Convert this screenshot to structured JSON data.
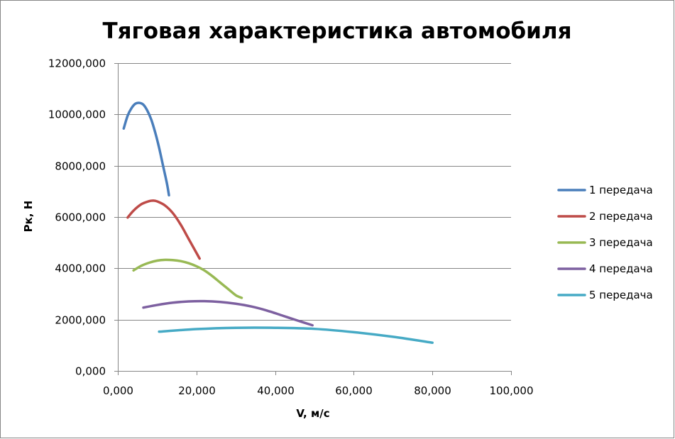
{
  "chart_data": {
    "type": "line",
    "title": "Тяговая характеристика автомобиля",
    "xlabel": "V, м/с",
    "ylabel": "Рк, Н",
    "xlim": [
      0,
      100
    ],
    "ylim": [
      0,
      12000
    ],
    "x_ticks": [
      0,
      20,
      40,
      60,
      80,
      100
    ],
    "x_tick_labels": [
      "0,000",
      "20,000",
      "40,000",
      "60,000",
      "80,000",
      "100,000"
    ],
    "y_ticks": [
      0,
      2000,
      4000,
      6000,
      8000,
      10000,
      12000
    ],
    "y_tick_labels": [
      "0,000",
      "2000,000",
      "4000,000",
      "6000,000",
      "8000,000",
      "10000,000",
      "12000,000"
    ],
    "grid": "horizontal",
    "legend": "right",
    "series": [
      {
        "name": "1 передача",
        "color": "#4a7ebb",
        "x": [
          1.5,
          2.5,
          3.5,
          4.5,
          5.5,
          6.5,
          7.5,
          8.5,
          9.5,
          10.5,
          11.5,
          12.5,
          13.0
        ],
        "y": [
          9450,
          9950,
          10250,
          10420,
          10450,
          10380,
          10150,
          9800,
          9300,
          8700,
          8000,
          7300,
          6850
        ]
      },
      {
        "name": "2 передача",
        "color": "#be4b48",
        "x": [
          2.5,
          4,
          6,
          8,
          9,
          10,
          12,
          14,
          16,
          18,
          20,
          20.8
        ],
        "y": [
          5980,
          6250,
          6500,
          6620,
          6640,
          6610,
          6450,
          6150,
          5700,
          5150,
          4600,
          4380
        ]
      },
      {
        "name": "3 передача",
        "color": "#98b954",
        "x": [
          4,
          6,
          8,
          10,
          12,
          14,
          16,
          18,
          20,
          22,
          24,
          26,
          28,
          30,
          31.5
        ],
        "y": [
          3920,
          4100,
          4220,
          4300,
          4330,
          4320,
          4280,
          4200,
          4080,
          3920,
          3700,
          3450,
          3200,
          2950,
          2850
        ]
      },
      {
        "name": "4 передача",
        "color": "#7d60a0",
        "x": [
          6.5,
          10,
          14,
          18,
          22,
          26,
          30,
          34,
          38,
          42,
          46,
          49.5
        ],
        "y": [
          2470,
          2570,
          2660,
          2710,
          2720,
          2690,
          2620,
          2510,
          2350,
          2150,
          1950,
          1780
        ]
      },
      {
        "name": "5 передача",
        "color": "#46aac5",
        "x": [
          10.5,
          20,
          30,
          40,
          50,
          60,
          70,
          80
        ],
        "y": [
          1530,
          1630,
          1680,
          1680,
          1640,
          1510,
          1330,
          1100
        ]
      }
    ]
  }
}
